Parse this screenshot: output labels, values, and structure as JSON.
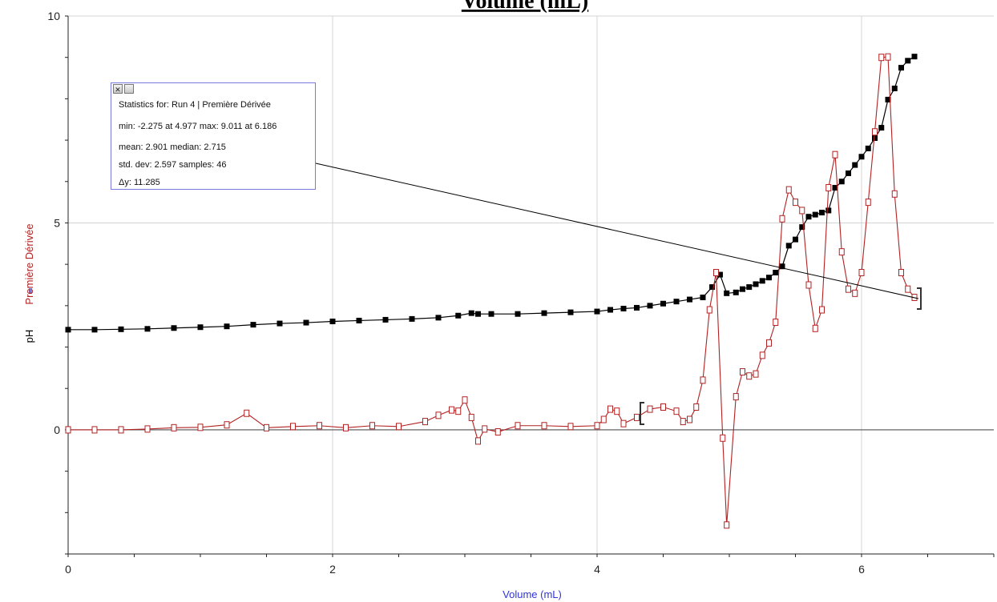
{
  "chart_data": {
    "type": "line",
    "title": "Volume (mL)",
    "xlabel": "Volume (mL)",
    "ylabels": [
      "pH",
      "Première Dérivée"
    ],
    "xlim": [
      0,
      7
    ],
    "ylim": [
      -3,
      10
    ],
    "xticks": [
      "0",
      "2",
      "4",
      "6"
    ],
    "xtick_values": [
      0,
      2,
      4,
      6
    ],
    "yticks": [
      "10",
      "5",
      "0"
    ],
    "ytick_values": [
      10,
      5,
      0
    ],
    "grid": true,
    "series": [
      {
        "name": "pH",
        "color": "#000000",
        "marker": "filled-square",
        "x": [
          0,
          0.2,
          0.4,
          0.6,
          0.8,
          1.0,
          1.2,
          1.4,
          1.6,
          1.8,
          2.0,
          2.2,
          2.4,
          2.6,
          2.8,
          2.95,
          3.05,
          3.1,
          3.2,
          3.4,
          3.6,
          3.8,
          4.0,
          4.1,
          4.2,
          4.3,
          4.4,
          4.5,
          4.6,
          4.7,
          4.8,
          4.87,
          4.93,
          4.98,
          5.05,
          5.1,
          5.15,
          5.2,
          5.25,
          5.3,
          5.35,
          5.4,
          5.45,
          5.5,
          5.55,
          5.6,
          5.65,
          5.7,
          5.75,
          5.8,
          5.85,
          5.9,
          5.95,
          6.0,
          6.05,
          6.1,
          6.15,
          6.2,
          6.25,
          6.3,
          6.35,
          6.4
        ],
        "y": [
          2.42,
          2.42,
          2.43,
          2.44,
          2.46,
          2.48,
          2.5,
          2.54,
          2.57,
          2.59,
          2.62,
          2.64,
          2.66,
          2.68,
          2.71,
          2.76,
          2.82,
          2.8,
          2.8,
          2.8,
          2.82,
          2.84,
          2.86,
          2.9,
          2.93,
          2.95,
          3.0,
          3.05,
          3.1,
          3.15,
          3.2,
          3.45,
          3.75,
          3.3,
          3.32,
          3.4,
          3.45,
          3.52,
          3.6,
          3.68,
          3.8,
          3.95,
          4.45,
          4.6,
          4.9,
          5.15,
          5.2,
          5.25,
          5.3,
          5.85,
          6.0,
          6.2,
          6.4,
          6.6,
          6.8,
          7.05,
          7.3,
          7.98,
          8.25,
          8.75,
          8.92,
          9.02
        ]
      },
      {
        "name": "Première Dérivée",
        "color": "#b22222",
        "marker": "open-square",
        "x": [
          0,
          0.2,
          0.4,
          0.6,
          0.8,
          1.0,
          1.2,
          1.35,
          1.5,
          1.7,
          1.9,
          2.1,
          2.3,
          2.5,
          2.7,
          2.8,
          2.9,
          2.95,
          3.0,
          3.05,
          3.1,
          3.15,
          3.25,
          3.4,
          3.6,
          3.8,
          4.0,
          4.05,
          4.1,
          4.15,
          4.2,
          4.3,
          4.4,
          4.5,
          4.6,
          4.65,
          4.7,
          4.75,
          4.8,
          4.85,
          4.9,
          4.95,
          4.98,
          5.05,
          5.1,
          5.15,
          5.2,
          5.25,
          5.3,
          5.35,
          5.4,
          5.45,
          5.5,
          5.55,
          5.6,
          5.65,
          5.7,
          5.75,
          5.8,
          5.85,
          5.9,
          5.95,
          6.0,
          6.05,
          6.1,
          6.15,
          6.2,
          6.25,
          6.3,
          6.35,
          6.4
        ],
        "y": [
          0,
          0,
          0,
          0.02,
          0.05,
          0.06,
          0.12,
          0.4,
          0.05,
          0.08,
          0.1,
          0.05,
          0.1,
          0.08,
          0.2,
          0.35,
          0.48,
          0.45,
          0.72,
          0.3,
          -0.27,
          0.02,
          -0.05,
          0.1,
          0.1,
          0.08,
          0.1,
          0.25,
          0.5,
          0.45,
          0.15,
          0.3,
          0.5,
          0.55,
          0.45,
          0.2,
          0.25,
          0.55,
          1.2,
          2.9,
          3.8,
          -0.2,
          -2.3,
          0.8,
          1.4,
          1.3,
          1.35,
          1.8,
          2.1,
          2.6,
          5.1,
          5.8,
          5.5,
          5.3,
          3.5,
          2.45,
          2.9,
          5.85,
          6.65,
          4.3,
          3.4,
          3.3,
          3.8,
          5.5,
          7.2,
          9.0,
          9.01,
          5.7,
          3.8,
          3.4,
          3.2
        ]
      }
    ]
  },
  "stats": {
    "header": "Statistics for: Run 4 | Première Dérivée",
    "minmax": "min: -2.275 at 4.977 max: 9.011 at 6.186",
    "meanmedian": "mean: 2.901 median: 2.715",
    "stddev": "std. dev: 2.597 samples: 46",
    "dy": "Δy: 11.285",
    "close_glyph": "✕"
  },
  "colors": {
    "grid": "#d4d4d4",
    "axis": "#222222",
    "zero_line": "#555555",
    "xlabel": "#2f36d8",
    "ph_label": "#000000",
    "deriv_label": "#b22222",
    "leader_line": "#000000"
  }
}
